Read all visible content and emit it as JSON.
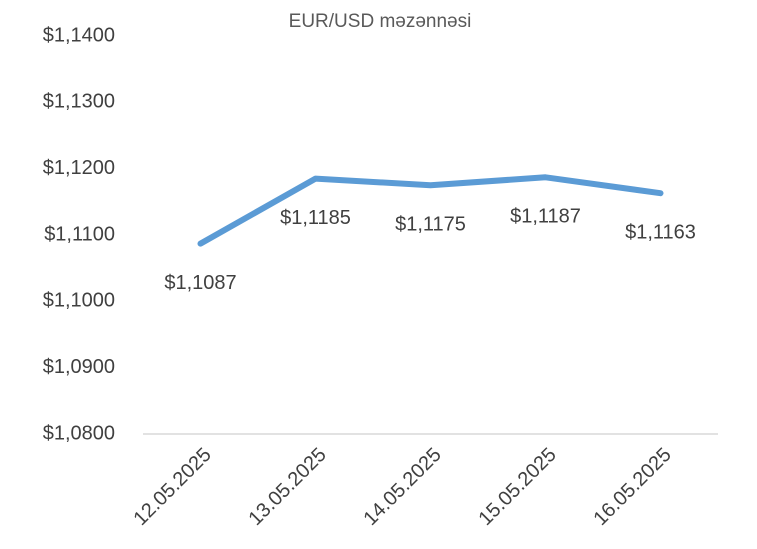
{
  "chart_data": {
    "type": "line",
    "title": "EUR/USD məzənnəsi",
    "categories": [
      "12.05.2025",
      "13.05.2025",
      "14.05.2025",
      "15.05.2025",
      "16.05.2025"
    ],
    "values": [
      1.1087,
      1.1185,
      1.1175,
      1.1187,
      1.1163
    ],
    "value_labels": [
      "$1,1087",
      "$1,1185",
      "$1,1175",
      "$1,1187",
      "$1,1163"
    ],
    "color": "#5b9bd5",
    "ylim": [
      1.08,
      1.14
    ],
    "yticks": [
      {
        "value": 1.08,
        "label": "$1,0800"
      },
      {
        "value": 1.09,
        "label": "$1,0900"
      },
      {
        "value": 1.1,
        "label": "$1,1000"
      },
      {
        "value": 1.11,
        "label": "$1,1100"
      },
      {
        "value": 1.12,
        "label": "$1,1200"
      },
      {
        "value": 1.13,
        "label": "$1,1300"
      },
      {
        "value": 1.14,
        "label": "$1,1400"
      }
    ],
    "grid": false
  }
}
